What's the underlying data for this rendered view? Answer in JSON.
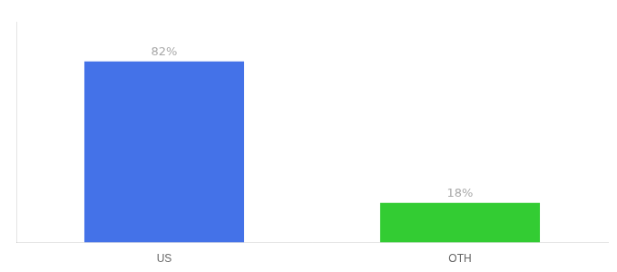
{
  "chart_data": {
    "type": "bar",
    "categories": [
      "US",
      "OTH"
    ],
    "values": [
      82,
      18
    ],
    "value_labels": [
      "82%",
      "18%"
    ],
    "colors": [
      "#4472e8",
      "#33cc33"
    ],
    "ylim": [
      0,
      100
    ],
    "grid": false,
    "data_labels": true,
    "tick_labels": "x"
  }
}
